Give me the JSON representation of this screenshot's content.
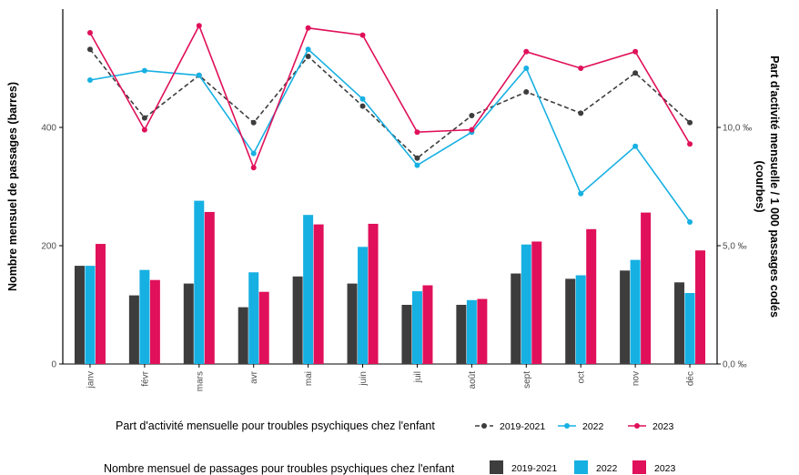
{
  "chart_data": {
    "type": "bar+line",
    "categories": [
      "janv",
      "févr",
      "mars",
      "avr",
      "mai",
      "juin",
      "juil",
      "août",
      "sept",
      "oct",
      "nov",
      "déc"
    ],
    "bars": {
      "axis": "left",
      "ylabel": "Nombre mensuel de passages (barres)",
      "ylim": [
        0,
        600
      ],
      "yticks": [
        0,
        200,
        400
      ],
      "legend_title": "Nombre mensuel de passages pour troubles psychiques chez l'enfant",
      "series": [
        {
          "name": "2019-2021",
          "color": "#3d3d3d",
          "values": [
            166,
            116,
            136,
            96,
            148,
            136,
            100,
            100,
            153,
            144,
            158,
            138
          ]
        },
        {
          "name": "2022",
          "color": "#17b0e3",
          "values": [
            166,
            159,
            276,
            155,
            252,
            198,
            123,
            108,
            202,
            150,
            176,
            120
          ]
        },
        {
          "name": "2023",
          "color": "#e0105a",
          "values": [
            203,
            142,
            257,
            122,
            236,
            237,
            133,
            110,
            207,
            228,
            256,
            192
          ]
        }
      ]
    },
    "lines": {
      "axis": "right",
      "ylabel": "Part d'activité mensuelle / 1 000 passages codés (courbes)",
      "ylim": [
        0,
        15
      ],
      "yticks": [
        0,
        5,
        10
      ],
      "ytick_labels": [
        "0,0 ‰",
        "5,0 ‰",
        "10,0 ‰"
      ],
      "legend_title": "Part d'activité mensuelle pour troubles psychiques chez l'enfant",
      "series": [
        {
          "name": "2019-2021",
          "color": "#3d3d3d",
          "dashed": true,
          "values": [
            13.3,
            10.4,
            12.2,
            10.2,
            13.0,
            10.9,
            8.7,
            10.5,
            11.5,
            10.6,
            12.3,
            10.2
          ]
        },
        {
          "name": "2022",
          "color": "#17b0e3",
          "dashed": false,
          "values": [
            12.0,
            12.4,
            12.2,
            8.9,
            13.3,
            11.2,
            8.4,
            9.8,
            12.5,
            7.2,
            9.2,
            6.0
          ]
        },
        {
          "name": "2023",
          "color": "#e0105a",
          "dashed": false,
          "values": [
            14.0,
            9.9,
            14.3,
            8.3,
            14.2,
            13.9,
            9.8,
            9.9,
            13.2,
            12.5,
            13.2,
            9.3
          ]
        }
      ]
    },
    "grid": false,
    "legend_position": "bottom"
  }
}
